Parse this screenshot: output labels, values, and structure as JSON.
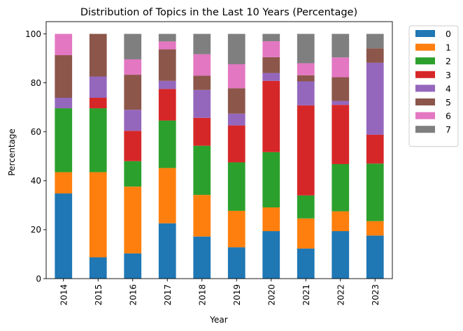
{
  "chart_data": {
    "type": "bar",
    "stacked": true,
    "title": "Distribution of Topics in the Last 10 Years (Percentage)",
    "xlabel": "Year",
    "ylabel": "Percentage",
    "ylim": [
      0,
      105
    ],
    "yticks": [
      0,
      20,
      40,
      60,
      80,
      100
    ],
    "categories": [
      "2014",
      "2015",
      "2016",
      "2017",
      "2018",
      "2019",
      "2020",
      "2021",
      "2022",
      "2023"
    ],
    "legend_position": "outside-top-right",
    "grid": false,
    "series": [
      {
        "name": "0",
        "color": "#1f77b4",
        "values": [
          34.8,
          8.7,
          10.3,
          22.6,
          17.2,
          12.8,
          19.4,
          12.3,
          19.4,
          17.6
        ]
      },
      {
        "name": "1",
        "color": "#ff7f0e",
        "values": [
          8.7,
          34.8,
          27.3,
          22.6,
          17.0,
          14.9,
          9.7,
          12.3,
          8.1,
          5.9
        ]
      },
      {
        "name": "2",
        "color": "#2ca02c",
        "values": [
          26.1,
          26.1,
          10.4,
          19.4,
          20.1,
          19.8,
          22.6,
          9.4,
          19.3,
          23.5
        ]
      },
      {
        "name": "3",
        "color": "#d62728",
        "values": [
          0.0,
          4.3,
          12.4,
          12.9,
          11.4,
          15.1,
          29.1,
          36.8,
          24.2,
          11.8
        ]
      },
      {
        "name": "4",
        "color": "#9467bd",
        "values": [
          4.3,
          8.7,
          8.6,
          3.3,
          11.4,
          4.8,
          3.2,
          9.8,
          1.6,
          29.4
        ]
      },
      {
        "name": "5",
        "color": "#8c564b",
        "values": [
          17.4,
          17.4,
          14.3,
          12.9,
          5.8,
          10.4,
          6.5,
          2.5,
          9.7,
          5.9
        ]
      },
      {
        "name": "6",
        "color": "#e377c2",
        "values": [
          8.7,
          0.0,
          6.3,
          3.2,
          8.8,
          9.8,
          6.5,
          4.9,
          8.1,
          0.0
        ]
      },
      {
        "name": "7",
        "color": "#7f7f7f",
        "values": [
          0.0,
          0.0,
          10.4,
          3.1,
          8.3,
          12.4,
          3.0,
          12.0,
          9.6,
          5.9
        ]
      }
    ]
  }
}
